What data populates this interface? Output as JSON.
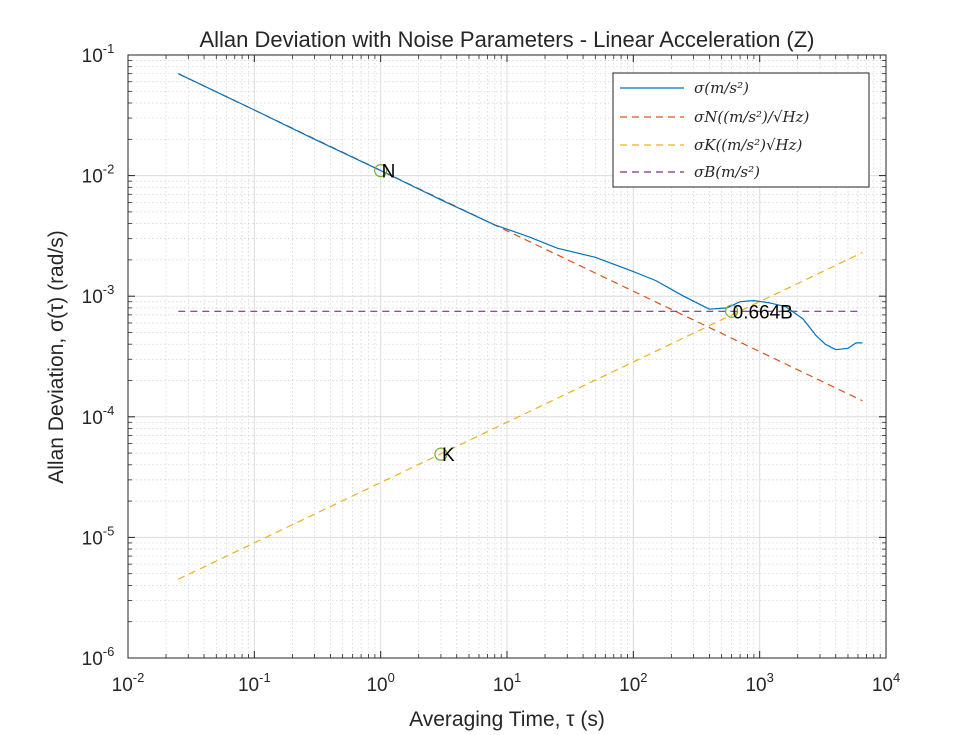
{
  "chart_data": {
    "type": "line",
    "title": "Allan Deviation with Noise Parameters - Linear Acceleration (Z)",
    "xlabel": "Averaging Time, τ (s)",
    "ylabel": "Allan Deviation, σ(τ) (rad/s)",
    "x_scale": "log",
    "y_scale": "log",
    "xlim": [
      0.01,
      10000
    ],
    "ylim": [
      1e-06,
      0.1
    ],
    "x_ticks": [
      {
        "base": "10",
        "exp": "-2",
        "value": 0.01
      },
      {
        "base": "10",
        "exp": "-1",
        "value": 0.1
      },
      {
        "base": "10",
        "exp": "0",
        "value": 1
      },
      {
        "base": "10",
        "exp": "1",
        "value": 10
      },
      {
        "base": "10",
        "exp": "2",
        "value": 100
      },
      {
        "base": "10",
        "exp": "3",
        "value": 1000
      },
      {
        "base": "10",
        "exp": "4",
        "value": 10000
      }
    ],
    "y_ticks": [
      {
        "base": "10",
        "exp": "-6",
        "value": 1e-06
      },
      {
        "base": "10",
        "exp": "-5",
        "value": 1e-05
      },
      {
        "base": "10",
        "exp": "-4",
        "value": 0.0001
      },
      {
        "base": "10",
        "exp": "-3",
        "value": 0.001
      },
      {
        "base": "10",
        "exp": "-2",
        "value": 0.01
      },
      {
        "base": "10",
        "exp": "-1",
        "value": 0.1
      }
    ],
    "grid": true,
    "legend_position": "top-right",
    "series": [
      {
        "name": "σ(m/s²)",
        "color": "#0072BD",
        "style": "solid",
        "x": [
          0.025,
          0.1,
          0.3,
          1,
          3,
          8,
          15,
          25,
          50,
          100,
          150,
          250,
          400,
          550,
          700,
          900,
          1200,
          1600,
          2200,
          2800,
          3300,
          4000,
          5000,
          5800,
          6500
        ],
        "y": [
          0.07,
          0.035,
          0.02,
          0.011,
          0.0063,
          0.0039,
          0.0031,
          0.0025,
          0.0021,
          0.0016,
          0.00135,
          0.001,
          0.00078,
          0.0008,
          0.0009,
          0.00092,
          0.00088,
          0.00082,
          0.00065,
          0.00047,
          0.0004,
          0.00036,
          0.00037,
          0.00041,
          0.00041
        ]
      },
      {
        "name": "σN((m/s²)/√Hz)",
        "color": "#D95319",
        "style": "dashed",
        "x": [
          0.025,
          6500
        ],
        "y": [
          0.07,
          0.000136
        ]
      },
      {
        "name": "σK((m/s²)√Hz)",
        "color": "#EDB120",
        "style": "dashed",
        "x": [
          0.025,
          6500
        ],
        "y": [
          4.5e-06,
          0.0023
        ]
      },
      {
        "name": "σB(m/s²)",
        "color": "#7E2F8E",
        "style": "dashed",
        "x": [
          0.025,
          6500
        ],
        "y": [
          0.00075,
          0.00075
        ]
      }
    ],
    "markers": [
      {
        "label": "N",
        "x": 1,
        "y": 0.011
      },
      {
        "label": "K",
        "x": 3,
        "y": 4.9e-05
      },
      {
        "label": "0.664B",
        "x": 600,
        "y": 0.00075
      }
    ]
  }
}
